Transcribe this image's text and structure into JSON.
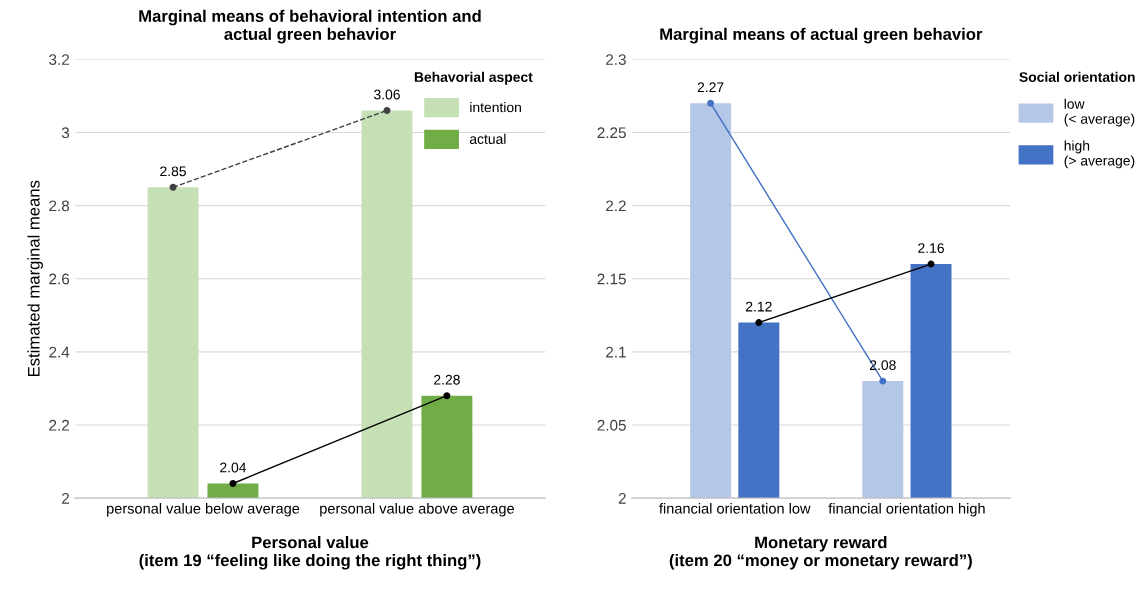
{
  "chart_data": [
    {
      "type": "bar",
      "title": "Marginal means of behavioral intention and\nactual green behavior",
      "xlabel": "Personal value\n(item 19 “feeling like doing the right thing”)",
      "ylabel": "Estimated marginal means",
      "legend_title": "Behavorial aspect",
      "categories": [
        "personal value below average",
        "personal value above average"
      ],
      "series": [
        {
          "name": "intention",
          "color": "#c5e0b4",
          "values": [
            2.85,
            3.06
          ]
        },
        {
          "name": "actual",
          "color": "#70ad47",
          "values": [
            2.04,
            2.28
          ]
        },
        {
          "type": "line",
          "color": "#404040",
          "line_style": "dashed",
          "marker": "circle",
          "values": [
            2.85,
            3.06
          ],
          "value_labels": [
            "2.85",
            "3.06"
          ]
        },
        {
          "type": "line",
          "color": "#000000",
          "line_style": "solid",
          "marker": "circle",
          "values": [
            2.04,
            2.28
          ],
          "value_labels": [
            "2.04",
            "2.28"
          ]
        }
      ],
      "ylim": [
        2,
        3.2
      ],
      "yticks": [
        2,
        2.2,
        2.4,
        2.6,
        2.8,
        3,
        3.2
      ],
      "grid": "y",
      "legend": "top right"
    },
    {
      "type": "bar",
      "title": "Marginal means of actual green behavior",
      "xlabel": "Monetary reward\n(item 20 “money or monetary reward”)",
      "legend_title": "Social orientation",
      "categories": [
        "financial orientation low",
        "financial orientation high"
      ],
      "series": [
        {
          "name": "low\n(< average)",
          "color": "#b4c7e7",
          "values": [
            2.27,
            2.08
          ]
        },
        {
          "name": "high\n(> average)",
          "color": "#4472c4",
          "values": [
            2.12,
            2.16
          ]
        },
        {
          "type": "line",
          "color": "#4472c4",
          "line_style": "solid",
          "marker": "circle",
          "values": [
            2.27,
            2.08
          ],
          "value_labels": [
            "2.27",
            "2.08"
          ]
        },
        {
          "type": "line",
          "color": "#000000",
          "line_style": "solid",
          "marker": "circle",
          "values": [
            2.12,
            2.16
          ],
          "value_labels": [
            "2.12",
            "2.16"
          ]
        }
      ],
      "ylim": [
        2,
        2.3
      ],
      "yticks": [
        2,
        2.05,
        2.1,
        2.15,
        2.2,
        2.25,
        2.3
      ],
      "grid": "y",
      "legend": "right"
    }
  ]
}
